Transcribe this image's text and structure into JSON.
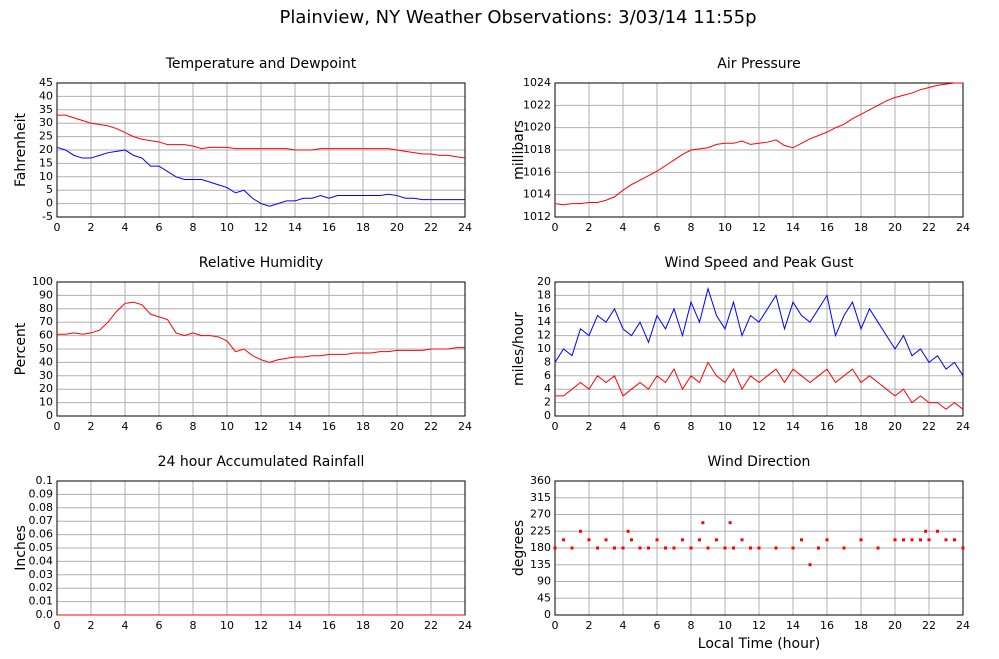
{
  "page_title": "Plainview, NY Weather Observations: 3/03/14 11:55p",
  "chart_data": [
    {
      "type": "line",
      "title": "Temperature and Dewpoint",
      "ylabel": "Fahrenheit",
      "x": [
        0,
        0.5,
        1,
        1.5,
        2,
        2.5,
        3,
        3.5,
        4,
        4.5,
        5,
        5.5,
        6,
        6.5,
        7,
        7.5,
        8,
        8.5,
        9,
        9.5,
        10,
        10.5,
        11,
        11.5,
        12,
        12.5,
        13,
        13.5,
        14,
        14.5,
        15,
        15.5,
        16,
        16.5,
        17,
        17.5,
        18,
        18.5,
        19,
        19.5,
        20,
        20.5,
        21,
        21.5,
        22,
        22.5,
        23,
        23.5,
        24
      ],
      "series": [
        {
          "color": "#ff0000",
          "values": [
            33,
            33,
            32,
            31,
            30,
            29.5,
            29,
            28,
            26.5,
            25,
            24,
            23.5,
            23,
            22,
            22,
            22,
            21.5,
            20.5,
            21,
            21,
            21,
            20.5,
            20.5,
            20.5,
            20.5,
            20.5,
            20.5,
            20.5,
            20,
            20,
            20,
            20.5,
            20.5,
            20.5,
            20.5,
            20.5,
            20.5,
            20.5,
            20.5,
            20.5,
            20,
            19.5,
            19,
            18.5,
            18.5,
            18,
            18,
            17.5,
            17
          ]
        },
        {
          "color": "#0000ff",
          "values": [
            21,
            20,
            18,
            17,
            17,
            18,
            19,
            19.5,
            20,
            18,
            17,
            14,
            14,
            12,
            10,
            9,
            9,
            9,
            8,
            7,
            6,
            4,
            5,
            2,
            0,
            -1,
            0,
            1,
            1,
            2,
            2,
            3,
            2,
            3,
            3,
            3,
            3,
            3,
            3,
            3.5,
            3,
            2,
            2,
            1.5,
            1.5,
            1.5,
            1.5,
            1.5,
            1.5
          ]
        }
      ],
      "xlim": [
        0,
        24
      ],
      "xticks": [
        0,
        2,
        4,
        6,
        8,
        10,
        12,
        14,
        16,
        18,
        20,
        22,
        24
      ],
      "ylim": [
        -5,
        45
      ],
      "yticks": [
        -5,
        0,
        5,
        10,
        15,
        20,
        25,
        30,
        35,
        40,
        45
      ],
      "grid": true
    },
    {
      "type": "line",
      "title": "Air Pressure",
      "ylabel": "millibars",
      "x": [
        0,
        0.5,
        1,
        1.5,
        2,
        2.5,
        3,
        3.5,
        4,
        4.5,
        5,
        5.5,
        6,
        6.5,
        7,
        7.5,
        8,
        8.5,
        9,
        9.5,
        10,
        10.5,
        11,
        11.5,
        12,
        12.5,
        13,
        13.5,
        14,
        14.5,
        15,
        15.5,
        16,
        16.5,
        17,
        17.5,
        18,
        18.5,
        19,
        19.5,
        20,
        20.5,
        21,
        21.5,
        22,
        22.5,
        23,
        23.5,
        24
      ],
      "series": [
        {
          "color": "#ff0000",
          "values": [
            1013.2,
            1013.1,
            1013.2,
            1013.2,
            1013.3,
            1013.3,
            1013.5,
            1013.8,
            1014.4,
            1014.9,
            1015.3,
            1015.7,
            1016.1,
            1016.6,
            1017.1,
            1017.6,
            1018.0,
            1018.1,
            1018.2,
            1018.5,
            1018.6,
            1018.6,
            1018.8,
            1018.5,
            1018.6,
            1018.7,
            1018.9,
            1018.4,
            1018.2,
            1018.6,
            1019.0,
            1019.3,
            1019.6,
            1020.0,
            1020.3,
            1020.8,
            1021.2,
            1021.6,
            1022.0,
            1022.4,
            1022.7,
            1022.9,
            1023.1,
            1023.4,
            1023.6,
            1023.8,
            1023.9,
            1024,
            1024
          ]
        }
      ],
      "xlim": [
        0,
        24
      ],
      "xticks": [
        0,
        2,
        4,
        6,
        8,
        10,
        12,
        14,
        16,
        18,
        20,
        22,
        24
      ],
      "ylim": [
        1012,
        1024
      ],
      "yticks": [
        1012,
        1014,
        1016,
        1018,
        1020,
        1022,
        1024
      ],
      "grid": true
    },
    {
      "type": "line",
      "title": "Relative Humidity",
      "ylabel": "Percent",
      "x": [
        0,
        0.5,
        1,
        1.5,
        2,
        2.5,
        3,
        3.5,
        4,
        4.5,
        5,
        5.5,
        6,
        6.5,
        7,
        7.5,
        8,
        8.5,
        9,
        9.5,
        10,
        10.5,
        11,
        11.5,
        12,
        12.5,
        13,
        13.5,
        14,
        14.5,
        15,
        15.5,
        16,
        16.5,
        17,
        17.5,
        18,
        18.5,
        19,
        19.5,
        20,
        20.5,
        21,
        21.5,
        22,
        22.5,
        23,
        23.5,
        24
      ],
      "series": [
        {
          "color": "#ff0000",
          "values": [
            61,
            61,
            62,
            61,
            62,
            64,
            70,
            78,
            84,
            85,
            83,
            76,
            74,
            72,
            62,
            60,
            62,
            60,
            60,
            59,
            56,
            48,
            50,
            45,
            42,
            40,
            42,
            43,
            44,
            44,
            45,
            45,
            46,
            46,
            46,
            47,
            47,
            47,
            48,
            48,
            49,
            49,
            49,
            49,
            50,
            50,
            50,
            51,
            51
          ]
        }
      ],
      "xlim": [
        0,
        24
      ],
      "xticks": [
        0,
        2,
        4,
        6,
        8,
        10,
        12,
        14,
        16,
        18,
        20,
        22,
        24
      ],
      "ylim": [
        0,
        100
      ],
      "yticks": [
        0,
        10,
        20,
        30,
        40,
        50,
        60,
        70,
        80,
        90,
        100
      ],
      "grid": true
    },
    {
      "type": "line",
      "title": "Wind Speed and Peak Gust",
      "ylabel": "miles/hour",
      "x": [
        0,
        0.5,
        1,
        1.5,
        2,
        2.5,
        3,
        3.5,
        4,
        4.5,
        5,
        5.5,
        6,
        6.5,
        7,
        7.5,
        8,
        8.5,
        9,
        9.5,
        10,
        10.5,
        11,
        11.5,
        12,
        12.5,
        13,
        13.5,
        14,
        14.5,
        15,
        15.5,
        16,
        16.5,
        17,
        17.5,
        18,
        18.5,
        19,
        19.5,
        20,
        20.5,
        21,
        21.5,
        22,
        22.5,
        23,
        23.5,
        24
      ],
      "series": [
        {
          "color": "#0000ff",
          "values": [
            8,
            10,
            9,
            13,
            12,
            15,
            14,
            16,
            13,
            12,
            14,
            11,
            15,
            13,
            16,
            12,
            17,
            14,
            19,
            15,
            13,
            17,
            12,
            15,
            14,
            16,
            18,
            13,
            17,
            15,
            14,
            16,
            18,
            12,
            15,
            17,
            13,
            16,
            14,
            12,
            10,
            12,
            9,
            10,
            8,
            9,
            7,
            8,
            6
          ]
        },
        {
          "color": "#ff0000",
          "values": [
            3,
            3,
            4,
            5,
            4,
            6,
            5,
            6,
            3,
            4,
            5,
            4,
            6,
            5,
            7,
            4,
            6,
            5,
            8,
            6,
            5,
            7,
            4,
            6,
            5,
            6,
            7,
            5,
            7,
            6,
            5,
            6,
            7,
            5,
            6,
            7,
            5,
            6,
            5,
            4,
            3,
            4,
            2,
            3,
            2,
            2,
            1,
            2,
            1
          ]
        }
      ],
      "xlim": [
        0,
        24
      ],
      "xticks": [
        0,
        2,
        4,
        6,
        8,
        10,
        12,
        14,
        16,
        18,
        20,
        22,
        24
      ],
      "ylim": [
        0,
        20
      ],
      "yticks": [
        0,
        2,
        4,
        6,
        8,
        10,
        12,
        14,
        16,
        18,
        20
      ],
      "grid": true
    },
    {
      "type": "line",
      "title": "24 hour Accumulated Rainfall",
      "ylabel": "Inches",
      "x": [
        0,
        24
      ],
      "series": [
        {
          "color": "#ff0000",
          "values": [
            0,
            0
          ]
        }
      ],
      "xlim": [
        0,
        24
      ],
      "xticks": [
        0,
        2,
        4,
        6,
        8,
        10,
        12,
        14,
        16,
        18,
        20,
        22,
        24
      ],
      "ylim": [
        0,
        0.1
      ],
      "yticks": [
        {
          "value": 0,
          "label": "0.0"
        },
        0.01,
        0.02,
        0.03,
        0.04,
        0.05,
        0.06,
        0.07,
        0.08,
        0.09,
        0.1
      ],
      "grid": true
    },
    {
      "type": "scatter",
      "title": "Wind Direction",
      "ylabel": "degrees",
      "xlabel": "Local Time (hour)",
      "x": [
        0,
        0.5,
        1,
        1.5,
        2,
        2.5,
        3,
        3.5,
        4,
        4.3,
        4.5,
        5,
        5.5,
        6,
        6.5,
        7,
        7.5,
        8,
        8.5,
        8.7,
        9,
        9.5,
        10,
        10.3,
        10.5,
        11,
        11.5,
        12,
        13,
        14,
        14.5,
        15,
        15.5,
        16,
        17,
        18,
        19,
        20,
        20.5,
        21,
        21.5,
        21.8,
        22,
        22.5,
        23,
        23.5,
        24
      ],
      "series": [
        {
          "color": "#ff0000",
          "values": [
            180,
            202,
            180,
            225,
            202,
            180,
            202,
            180,
            180,
            225,
            202,
            180,
            180,
            202,
            180,
            180,
            202,
            180,
            202,
            248,
            180,
            202,
            180,
            248,
            180,
            202,
            180,
            180,
            180,
            180,
            202,
            135,
            180,
            202,
            180,
            202,
            180,
            202,
            202,
            202,
            202,
            225,
            202,
            225,
            202,
            202,
            180
          ]
        }
      ],
      "xlim": [
        0,
        24
      ],
      "xticks": [
        0,
        2,
        4,
        6,
        8,
        10,
        12,
        14,
        16,
        18,
        20,
        22,
        24
      ],
      "ylim": [
        0,
        360
      ],
      "yticks": [
        0,
        45,
        90,
        135,
        180,
        225,
        270,
        315,
        360
      ],
      "grid": true
    }
  ]
}
